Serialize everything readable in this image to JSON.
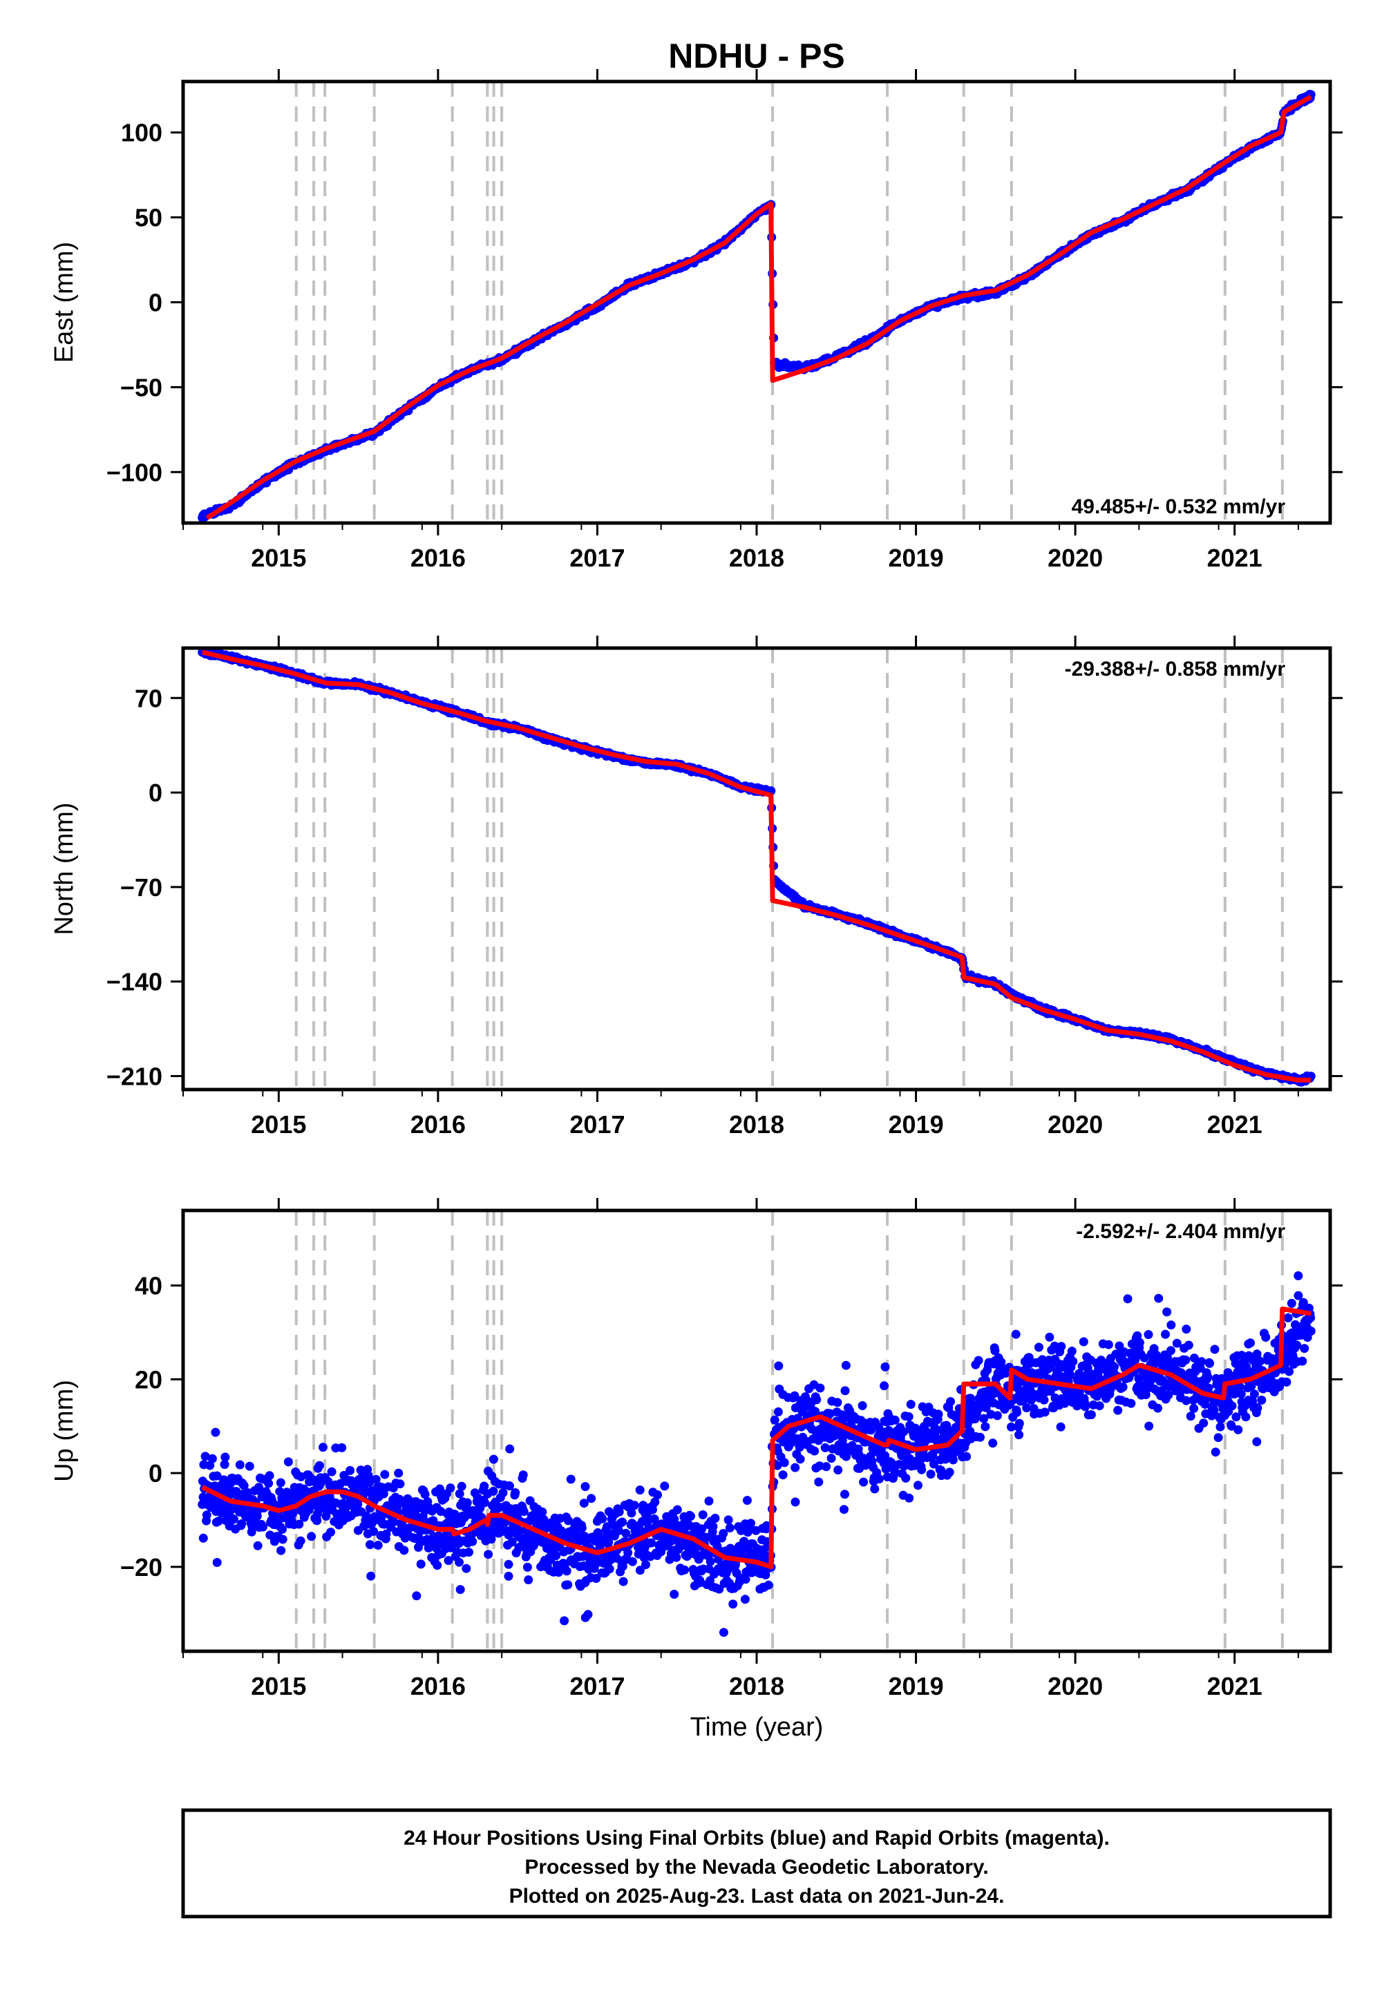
{
  "title": "NDHU - PS",
  "xlabel": "Time (year)",
  "footer": {
    "lines": [
      "24 Hour Positions Using Final Orbits (blue) and Rapid Orbits (magenta).",
      "Processed by the Nevada Geodetic Laboratory.",
      "Plotted on 2025-Aug-23. Last data on 2021-Jun-24."
    ]
  },
  "colors": {
    "data": "#0000ff",
    "model": "#ff0000",
    "events": "#c0c0c0",
    "frame": "#000000"
  },
  "chart_data": [
    {
      "type": "scatter",
      "ylabel": "East (mm)",
      "rate_label": "49.485+/- 0.532 mm/yr",
      "rate_position": "bottom-right",
      "xlim": [
        2014.4,
        2021.6
      ],
      "ylim": [
        -130,
        130
      ],
      "x_ticks": [
        2015,
        2016,
        2017,
        2018,
        2019,
        2020,
        2021
      ],
      "x_tick_labels": [
        "2015",
        "2016",
        "2017",
        "2018",
        "2019",
        "2020",
        "2021"
      ],
      "y_ticks": [
        -100,
        -50,
        0,
        50,
        100
      ],
      "y_tick_labels": [
        "−100",
        "−50",
        "0",
        "50",
        "100"
      ],
      "grid": false,
      "event_lines": [
        2015.11,
        2015.22,
        2015.29,
        2015.6,
        2016.09,
        2016.31,
        2016.35,
        2016.4,
        2018.1,
        2018.82,
        2019.3,
        2019.6,
        2020.94,
        2021.3
      ],
      "series": [
        {
          "style": "points",
          "color": "#0000ff",
          "x": [
            2014.52,
            2014.7,
            2014.9,
            2015.1,
            2015.3,
            2015.6,
            2015.8,
            2016.0,
            2016.2,
            2016.4,
            2016.6,
            2016.8,
            2017.0,
            2017.2,
            2017.4,
            2017.6,
            2017.8,
            2018.0,
            2018.09,
            2018.11,
            2018.3,
            2018.5,
            2018.7,
            2018.9,
            2019.1,
            2019.3,
            2019.5,
            2019.7,
            2019.9,
            2020.1,
            2020.3,
            2020.5,
            2020.7,
            2020.9,
            2021.1,
            2021.29,
            2021.31,
            2021.48
          ],
          "y": [
            -126,
            -120,
            -106,
            -95,
            -87,
            -77,
            -63,
            -50,
            -40,
            -34,
            -23,
            -13,
            -2,
            10,
            17,
            24,
            35,
            52,
            57,
            -36,
            -39,
            -32,
            -23,
            -11,
            -2,
            3,
            6,
            15,
            28,
            40,
            48,
            58,
            66,
            79,
            91,
            100,
            112,
            122
          ]
        },
        {
          "style": "line",
          "color": "#ff0000",
          "x": [
            2014.55,
            2014.7,
            2014.9,
            2015.1,
            2015.3,
            2015.6,
            2015.8,
            2016.0,
            2016.2,
            2016.4,
            2016.6,
            2016.8,
            2017.0,
            2017.2,
            2017.4,
            2017.6,
            2017.8,
            2018.0,
            2018.09,
            2018.1,
            2018.3,
            2018.5,
            2018.7,
            2018.9,
            2019.1,
            2019.3,
            2019.5,
            2019.7,
            2019.9,
            2020.1,
            2020.3,
            2020.5,
            2020.7,
            2020.9,
            2021.1,
            2021.29,
            2021.31,
            2021.48
          ],
          "y": [
            -127,
            -118,
            -105,
            -94,
            -86,
            -76,
            -62,
            -49,
            -40,
            -33,
            -22,
            -12,
            -1,
            10,
            17,
            25,
            35,
            52,
            58,
            -46,
            -40,
            -33,
            -24,
            -11,
            -2,
            4,
            7,
            16,
            28,
            41,
            49,
            58,
            67,
            80,
            92,
            100,
            112,
            121
          ]
        }
      ]
    },
    {
      "type": "scatter",
      "ylabel": "North (mm)",
      "rate_label": "-29.388+/- 0.858 mm/yr",
      "rate_position": "top-right",
      "xlim": [
        2014.4,
        2021.6
      ],
      "ylim": [
        -220,
        107
      ],
      "x_ticks": [
        2015,
        2016,
        2017,
        2018,
        2019,
        2020,
        2021
      ],
      "x_tick_labels": [
        "2015",
        "2016",
        "2017",
        "2018",
        "2019",
        "2020",
        "2021"
      ],
      "y_ticks": [
        -210,
        -140,
        -70,
        0,
        70
      ],
      "y_tick_labels": [
        "−210",
        "−140",
        "−70",
        "0",
        "70"
      ],
      "grid": false,
      "event_lines": [
        2015.11,
        2015.22,
        2015.29,
        2015.6,
        2016.09,
        2016.31,
        2016.35,
        2016.4,
        2018.1,
        2018.82,
        2019.3,
        2019.6,
        2020.94,
        2021.3
      ],
      "series": [
        {
          "style": "points",
          "color": "#0000ff",
          "x": [
            2014.52,
            2014.7,
            2014.9,
            2015.1,
            2015.3,
            2015.5,
            2015.7,
            2015.9,
            2016.1,
            2016.3,
            2016.5,
            2016.7,
            2016.9,
            2017.1,
            2017.3,
            2017.5,
            2017.7,
            2017.9,
            2018.09,
            2018.11,
            2018.3,
            2018.5,
            2018.7,
            2018.9,
            2019.1,
            2019.29,
            2019.31,
            2019.5,
            2019.61,
            2019.8,
            2020.0,
            2020.2,
            2020.4,
            2020.6,
            2020.8,
            2021.0,
            2021.2,
            2021.4,
            2021.48
          ],
          "y": [
            104,
            100,
            94,
            88,
            81,
            80,
            74,
            67,
            60,
            52,
            48,
            40,
            33,
            27,
            22,
            20,
            14,
            4,
            1,
            -65,
            -84,
            -90,
            -97,
            -106,
            -114,
            -123,
            -136,
            -142,
            -150,
            -161,
            -168,
            -176,
            -178,
            -183,
            -191,
            -200,
            -208,
            -213,
            -211
          ]
        },
        {
          "style": "line",
          "color": "#ff0000",
          "x": [
            2014.52,
            2014.7,
            2014.9,
            2015.1,
            2015.3,
            2015.5,
            2015.7,
            2015.9,
            2016.1,
            2016.3,
            2016.5,
            2016.7,
            2016.9,
            2017.1,
            2017.3,
            2017.5,
            2017.7,
            2017.9,
            2018.09,
            2018.1,
            2018.3,
            2018.5,
            2018.7,
            2018.9,
            2019.1,
            2019.29,
            2019.3,
            2019.5,
            2019.6,
            2019.8,
            2020.0,
            2020.2,
            2020.4,
            2020.6,
            2020.8,
            2021.0,
            2021.2,
            2021.4,
            2021.48
          ],
          "y": [
            104,
            99,
            94,
            88,
            81,
            80,
            74,
            66,
            60,
            53,
            48,
            41,
            34,
            28,
            23,
            21,
            14,
            4,
            -2,
            -80,
            -85,
            -91,
            -98,
            -106,
            -114,
            -122,
            -137,
            -142,
            -152,
            -161,
            -168,
            -176,
            -179,
            -184,
            -192,
            -202,
            -209,
            -213,
            -213
          ]
        }
      ]
    },
    {
      "type": "scatter",
      "ylabel": "Up (mm)",
      "rate_label": "-2.592+/- 2.404 mm/yr",
      "rate_position": "top-right",
      "xlim": [
        2014.4,
        2021.6
      ],
      "ylim": [
        -38,
        56
      ],
      "x_ticks": [
        2015,
        2016,
        2017,
        2018,
        2019,
        2020,
        2021
      ],
      "x_tick_labels": [
        "2015",
        "2016",
        "2017",
        "2018",
        "2019",
        "2020",
        "2021"
      ],
      "y_ticks": [
        -20,
        0,
        20,
        40
      ],
      "y_tick_labels": [
        "−20",
        "0",
        "20",
        "40"
      ],
      "grid": false,
      "event_lines": [
        2015.11,
        2015.22,
        2015.29,
        2015.6,
        2016.09,
        2016.31,
        2016.35,
        2016.4,
        2018.1,
        2018.82,
        2019.3,
        2019.6,
        2020.94,
        2021.3
      ],
      "scatter_band_mm": 7,
      "series": [
        {
          "style": "points",
          "color": "#0000ff",
          "x": [
            2014.52,
            2014.7,
            2014.9,
            2015.1,
            2015.3,
            2015.5,
            2015.7,
            2015.9,
            2016.08,
            2016.25,
            2016.4,
            2016.6,
            2016.8,
            2017.0,
            2017.2,
            2017.4,
            2017.6,
            2017.8,
            2018.0,
            2018.09,
            2018.11,
            2018.3,
            2018.5,
            2018.7,
            2018.82,
            2019.0,
            2019.2,
            2019.3,
            2019.5,
            2019.6,
            2019.8,
            2020.0,
            2020.2,
            2020.4,
            2020.6,
            2020.8,
            2020.94,
            2021.1,
            2021.3,
            2021.48
          ],
          "y": [
            -3,
            -6,
            -7,
            -7,
            -5,
            -5,
            -9,
            -11,
            -12,
            -10,
            -10,
            -13,
            -15,
            -16,
            -14,
            -12,
            -15,
            -18,
            -19,
            -20,
            8,
            11,
            9,
            6,
            6,
            5,
            7,
            10,
            19,
            17,
            20,
            18,
            20,
            23,
            22,
            18,
            16,
            20,
            24,
            35
          ]
        },
        {
          "style": "line",
          "color": "#ff0000",
          "x": [
            2014.52,
            2014.7,
            2014.9,
            2015.0,
            2015.11,
            2015.2,
            2015.3,
            2015.4,
            2015.5,
            2015.6,
            2015.8,
            2016.0,
            2016.09,
            2016.1,
            2016.2,
            2016.3,
            2016.31,
            2016.32,
            2016.4,
            2016.6,
            2016.8,
            2017.0,
            2017.2,
            2017.4,
            2017.6,
            2017.8,
            2018.0,
            2018.09,
            2018.1,
            2018.2,
            2018.4,
            2018.6,
            2018.8,
            2018.82,
            2018.83,
            2019.0,
            2019.2,
            2019.29,
            2019.3,
            2019.5,
            2019.59,
            2019.6,
            2019.7,
            2019.9,
            2020.1,
            2020.3,
            2020.4,
            2020.6,
            2020.8,
            2020.93,
            2020.94,
            2021.1,
            2021.29,
            2021.3,
            2021.48
          ],
          "y": [
            -3,
            -6,
            -7,
            -8,
            -7,
            -5,
            -4,
            -4,
            -5,
            -7,
            -10,
            -12,
            -12,
            -13,
            -12,
            -10,
            -11,
            -9,
            -9,
            -12,
            -15,
            -17,
            -15,
            -12,
            -14,
            -18,
            -19,
            -20,
            7,
            10,
            12,
            9,
            6,
            6,
            7,
            5,
            6,
            9,
            19,
            19,
            16,
            22,
            20,
            19,
            18,
            21,
            23,
            21,
            17,
            16,
            19,
            20,
            23,
            35,
            34
          ]
        }
      ]
    }
  ]
}
